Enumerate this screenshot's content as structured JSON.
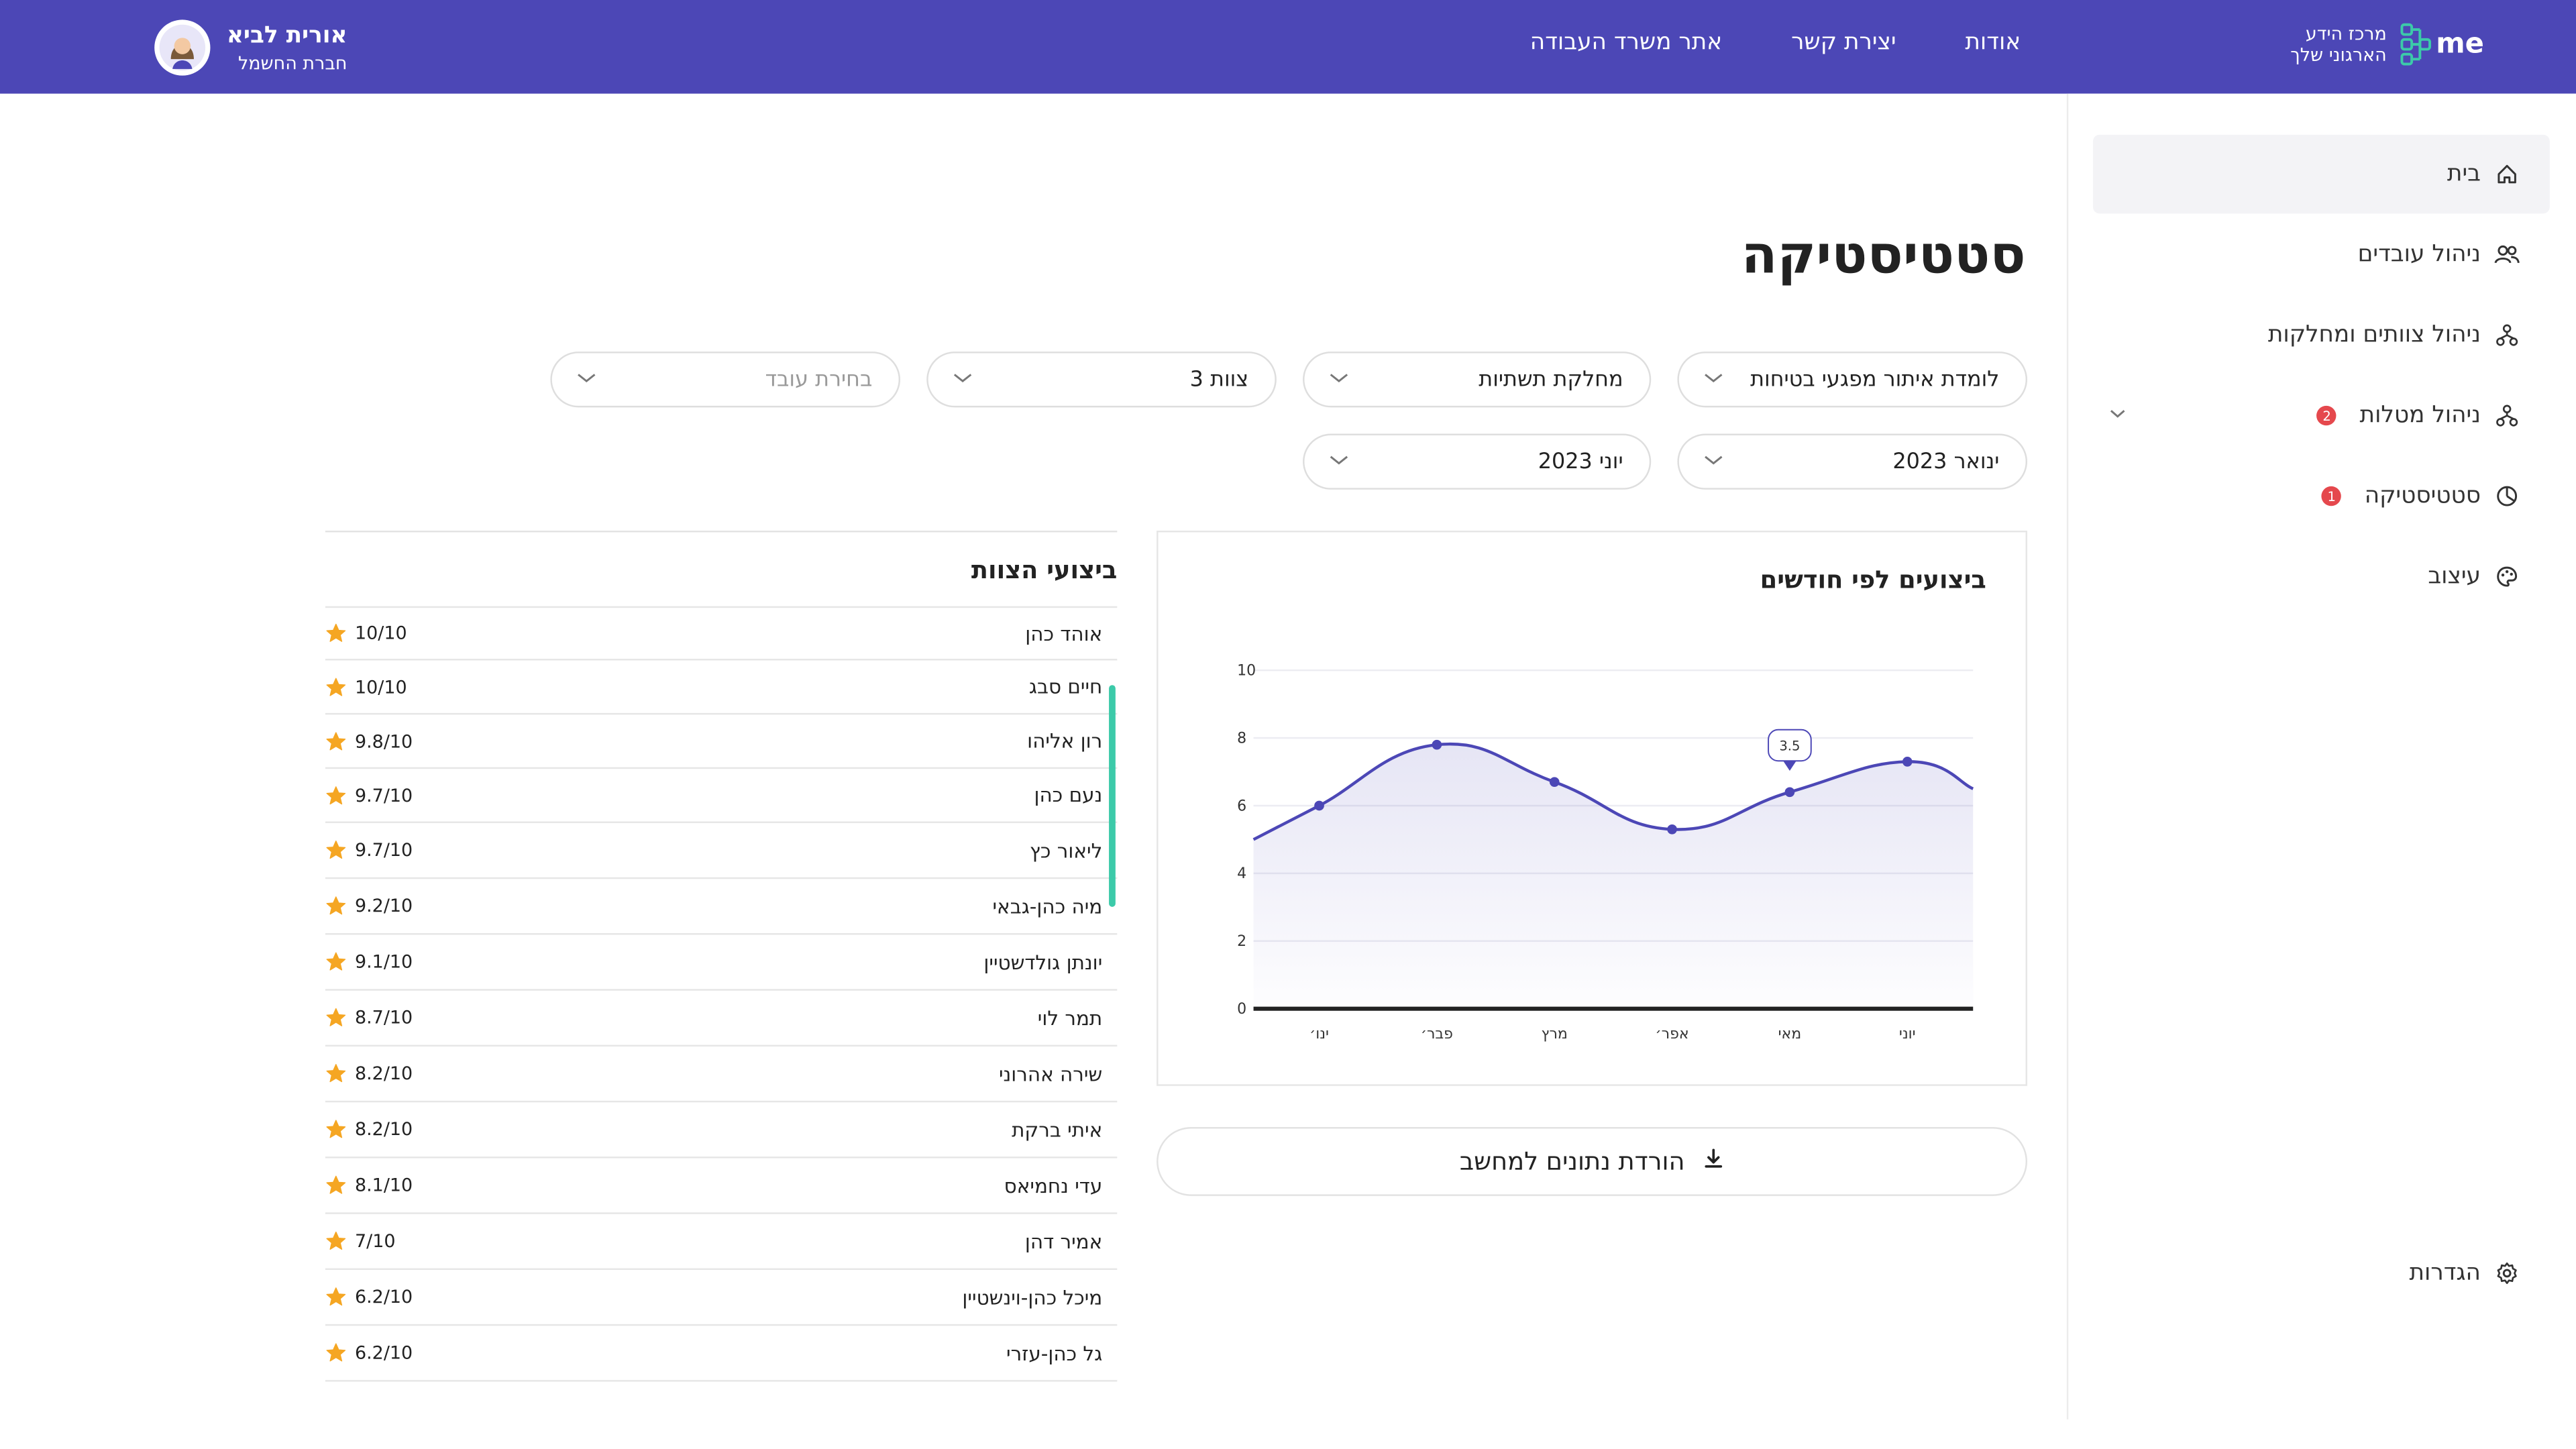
{
  "header": {
    "logo_text": "me",
    "logo_line1": "מרכז הידע",
    "logo_line2": "הארגוני שלך",
    "nav": [
      "אודות",
      "יצירת קשר",
      "אתר משרד העבודה"
    ],
    "user_name": "אורית לביא",
    "user_company": "חברת החשמל"
  },
  "sidebar": {
    "items": [
      {
        "label": "בית",
        "icon": "home-icon"
      },
      {
        "label": "ניהול עובדים",
        "icon": "users-icon"
      },
      {
        "label": "ניהול צוותים ומחלקות",
        "icon": "org-chart-icon"
      },
      {
        "label": "ניהול מטלות",
        "icon": "tasks-icon",
        "badge": "2"
      },
      {
        "label": "סטטיסטיקה",
        "icon": "statistics-icon",
        "badge": "1"
      },
      {
        "label": "עיצוב",
        "icon": "palette-icon"
      }
    ],
    "settings_label": "הגדרות"
  },
  "page_title": "סטטיסטיקה",
  "filters": {
    "course": "לומדת איתור מפגעי בטיחות",
    "department": "מחלקת תשתיות",
    "team": "צוות 3",
    "employee_placeholder": "בחירת עובד",
    "from_month": "ינואר 2023",
    "to_month": "יוני 2023"
  },
  "chart_title": "ביצועים לפי חודשים",
  "chart_tooltip": "3.5",
  "chart_data": {
    "type": "line",
    "title": "ביצועים לפי חודשים",
    "categories": [
      "ינו׳",
      "פבר׳",
      "מרץ",
      "אפר׳",
      "מאי",
      "יוני"
    ],
    "values": [
      6,
      7.8,
      6.7,
      5.3,
      6.4,
      7.3
    ],
    "ylim": [
      0,
      10
    ],
    "yticks": [
      0,
      2,
      4,
      6,
      8,
      10
    ],
    "grid": true,
    "color": "#4c47b6"
  },
  "download_label": "הורדת נתונים למחשב",
  "team_title": "ביצועי הצוות",
  "team_rows": [
    {
      "name": "אוהד כהן",
      "score": "10/10"
    },
    {
      "name": "חיים סבג",
      "score": "10/10"
    },
    {
      "name": "רון אליהו",
      "score": "9.8/10"
    },
    {
      "name": "נעם כהן",
      "score": "9.7/10"
    },
    {
      "name": "ליאור כץ",
      "score": "9.7/10"
    },
    {
      "name": "מיה כהן-גבאי",
      "score": "9.2/10"
    },
    {
      "name": "יונתן גולדשטיין",
      "score": "9.1/10"
    },
    {
      "name": "תמר לוי",
      "score": "8.7/10"
    },
    {
      "name": "שירה אהרוני",
      "score": "8.2/10"
    },
    {
      "name": "איתי ברקת",
      "score": "8.2/10"
    },
    {
      "name": "עדי נחמיאס",
      "score": "8.1/10"
    },
    {
      "name": "אמיר דהן",
      "score": "7/10"
    },
    {
      "name": "מיכל כהן-וינשטיין",
      "score": "6.2/10"
    },
    {
      "name": "גל כהן-עזרי",
      "score": "6.2/10"
    }
  ],
  "colors": {
    "brand": "#4c47b6",
    "accent": "#3ccaa9",
    "star": "#f5a623",
    "badge": "#e5484d"
  }
}
